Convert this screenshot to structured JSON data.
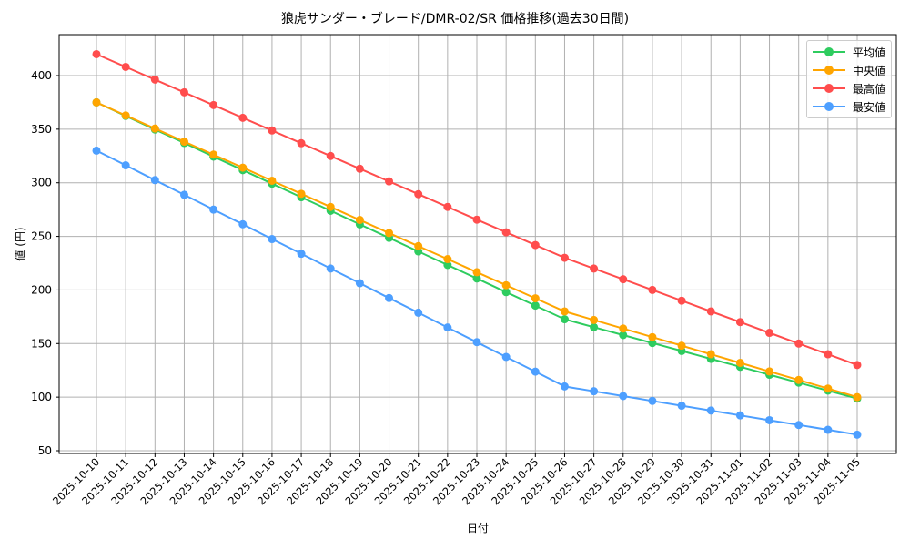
{
  "chart_data": {
    "type": "line",
    "title": "狼虎サンダー・ブレード/DMR-02/SR 価格推移(過去30日間)",
    "xlabel": "日付",
    "ylabel": "値 (円)",
    "ylim": [
      47,
      437
    ],
    "yticks": [
      50,
      100,
      150,
      200,
      250,
      300,
      350,
      400
    ],
    "grid": true,
    "legend_position": "upper right",
    "categories": [
      "2025-10-10",
      "2025-10-11",
      "2025-10-12",
      "2025-10-13",
      "2025-10-14",
      "2025-10-15",
      "2025-10-16",
      "2025-10-17",
      "2025-10-18",
      "2025-10-19",
      "2025-10-20",
      "2025-10-21",
      "2025-10-22",
      "2025-10-23",
      "2025-10-24",
      "2025-10-25",
      "2025-10-26",
      "2025-10-27",
      "2025-10-28",
      "2025-10-29",
      "2025-10-30",
      "2025-10-31",
      "2025-11-01",
      "2025-11-02",
      "2025-11-03",
      "2025-11-04",
      "2025-11-05"
    ],
    "series": [
      {
        "name": "平均値",
        "color": "#2ecc5f",
        "values": [
          375,
          362.4,
          349.7,
          337.1,
          324.4,
          311.8,
          299.2,
          286.5,
          273.9,
          261.2,
          248.6,
          236.0,
          223.3,
          210.7,
          198.0,
          185.4,
          172.7,
          165.3,
          157.9,
          150.5,
          143.1,
          135.7,
          128.3,
          120.9,
          113.5,
          106.1,
          98.7
        ]
      },
      {
        "name": "中央値",
        "color": "#ffa500",
        "values": [
          375,
          362.8,
          350.6,
          338.4,
          326.3,
          314.1,
          301.9,
          289.7,
          277.5,
          265.3,
          253.1,
          240.9,
          228.8,
          216.6,
          204.4,
          192.2,
          180,
          172,
          164,
          156,
          148,
          140,
          132,
          124,
          116,
          108,
          100
        ]
      },
      {
        "name": "最高値",
        "color": "#ff4d4d",
        "values": [
          420,
          408.1,
          396.3,
          384.4,
          372.5,
          360.6,
          348.8,
          336.9,
          325,
          313.1,
          301.3,
          289.4,
          277.5,
          265.6,
          253.8,
          241.9,
          230,
          220,
          210,
          200,
          190,
          180,
          170,
          160,
          150,
          140,
          130
        ]
      },
      {
        "name": "最安値",
        "color": "#4d9fff",
        "values": [
          330,
          316.3,
          302.5,
          288.8,
          275,
          261.3,
          247.5,
          233.8,
          220,
          206.3,
          192.5,
          178.8,
          165,
          151.3,
          137.5,
          123.8,
          110,
          105.5,
          101,
          96.5,
          92,
          87.5,
          83,
          78.5,
          74,
          69.5,
          65
        ]
      }
    ]
  },
  "legend": {
    "items": [
      {
        "label": "平均値",
        "color": "#2ecc5f"
      },
      {
        "label": "中央値",
        "color": "#ffa500"
      },
      {
        "label": "最高値",
        "color": "#ff4d4d"
      },
      {
        "label": "最安値",
        "color": "#4d9fff"
      }
    ]
  }
}
